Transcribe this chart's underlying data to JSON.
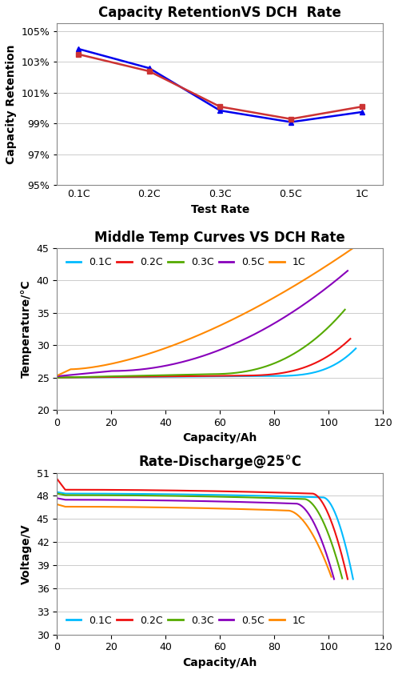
{
  "chart1": {
    "title": "Capacity RetentionVS DCH  Rate",
    "xlabel": "Test Rate",
    "ylabel": "Capacity Retention",
    "xticks": [
      "0.1C",
      "0.2C",
      "0.3C",
      "0.5C",
      "1C"
    ],
    "ylim": [
      0.95,
      1.055
    ],
    "yticks": [
      0.95,
      0.97,
      0.99,
      1.01,
      1.03,
      1.05
    ],
    "series": [
      {
        "color": "#0000EE",
        "marker": "^",
        "values": [
          1.0385,
          1.026,
          0.9985,
          0.991,
          0.9975
        ]
      },
      {
        "color": "#CC3333",
        "marker": "s",
        "values": [
          1.035,
          1.024,
          1.001,
          0.993,
          1.001
        ]
      }
    ]
  },
  "chart2": {
    "title": "Middle Temp Curves VS DCH Rate",
    "xlabel": "Capacity/Ah",
    "ylabel": "Temperature/°C",
    "xlim": [
      0,
      120
    ],
    "ylim": [
      20,
      45
    ],
    "xticks": [
      0,
      20,
      40,
      60,
      80,
      100,
      120
    ],
    "yticks": [
      20,
      25,
      30,
      35,
      40,
      45
    ],
    "series": [
      {
        "label": "0.1C",
        "color": "#00BBFF",
        "end_cap": 110,
        "end_temp": 29.5,
        "start_temp": 25.0,
        "rise_start": 75,
        "knee_power": 3.5
      },
      {
        "label": "0.2C",
        "color": "#EE1111",
        "end_cap": 108,
        "end_temp": 31.0,
        "start_temp": 25.0,
        "rise_start": 65,
        "knee_power": 3.0
      },
      {
        "label": "0.3C",
        "color": "#55AA00",
        "end_cap": 106,
        "end_temp": 35.5,
        "start_temp": 25.0,
        "rise_start": 55,
        "knee_power": 2.5
      },
      {
        "label": "0.5C",
        "color": "#8800BB",
        "end_cap": 107,
        "end_temp": 41.5,
        "start_temp": 25.2,
        "rise_start": 20,
        "knee_power": 2.0
      },
      {
        "label": "1C",
        "color": "#FF8800",
        "end_cap": 109,
        "end_temp": 45.0,
        "start_temp": 25.3,
        "rise_start": 5,
        "knee_power": 1.6
      }
    ]
  },
  "chart3": {
    "title": "Rate-Discharge@25°C",
    "xlabel": "Capacity/Ah",
    "ylabel": "Voltage/V",
    "xlim": [
      0,
      120
    ],
    "ylim": [
      30,
      51
    ],
    "xticks": [
      0,
      20,
      40,
      60,
      80,
      100,
      120
    ],
    "yticks": [
      30,
      33,
      36,
      39,
      42,
      45,
      48,
      51
    ],
    "series": [
      {
        "label": "0.1C",
        "color": "#00BBFF",
        "v_start": 48.5,
        "v_flat": 48.3,
        "flat_end": 98,
        "end_cap": 109,
        "end_v": 37.2
      },
      {
        "label": "0.2C",
        "color": "#EE1111",
        "v_start": 50.2,
        "v_flat": 48.8,
        "flat_end": 94,
        "end_cap": 107,
        "end_v": 37.2
      },
      {
        "label": "0.3C",
        "color": "#55AA00",
        "v_start": 48.3,
        "v_flat": 48.1,
        "flat_end": 91,
        "end_cap": 105,
        "end_v": 37.3
      },
      {
        "label": "0.5C",
        "color": "#8800BB",
        "v_start": 47.7,
        "v_flat": 47.5,
        "flat_end": 88,
        "end_cap": 102,
        "end_v": 37.2
      },
      {
        "label": "1C",
        "color": "#FF8800",
        "v_start": 46.9,
        "v_flat": 46.6,
        "flat_end": 85,
        "end_cap": 101,
        "end_v": 37.5
      }
    ]
  },
  "bg_color": "#FFFFFF",
  "title_fontsize": 12,
  "label_fontsize": 10,
  "tick_fontsize": 9,
  "legend_fontsize": 9
}
